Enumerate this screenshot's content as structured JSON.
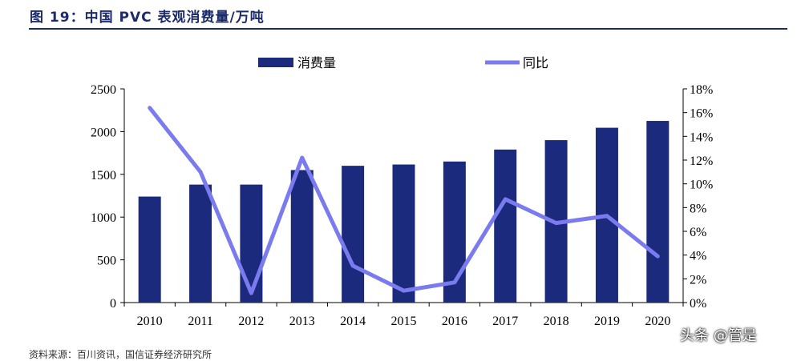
{
  "figure": {
    "title": "图 19：中国 PVC 表观消费量/万吨",
    "watermark": "头条 @管是",
    "source": "资料来源：百川资讯，国信证券经济研究所"
  },
  "chart_data": {
    "type": "bar",
    "categories": [
      "2010",
      "2011",
      "2012",
      "2013",
      "2014",
      "2015",
      "2016",
      "2017",
      "2018",
      "2019",
      "2020"
    ],
    "series": [
      {
        "name": "消费量",
        "type": "bar",
        "axis": "left",
        "values": [
          1240,
          1380,
          1380,
          1550,
          1600,
          1615,
          1650,
          1790,
          1900,
          2045,
          2125
        ]
      },
      {
        "name": "同比",
        "type": "line",
        "axis": "right",
        "values": [
          16.4,
          11.0,
          0.8,
          12.2,
          3.1,
          1.0,
          1.7,
          8.7,
          6.7,
          7.3,
          3.9
        ]
      }
    ],
    "y_left": {
      "min": 0,
      "max": 2500,
      "ticks": [
        0,
        500,
        1000,
        1500,
        2000,
        2500
      ]
    },
    "y_right": {
      "min": 0,
      "max": 18,
      "ticks": [
        "0%",
        "2%",
        "4%",
        "6%",
        "8%",
        "10%",
        "12%",
        "14%",
        "16%",
        "18%"
      ]
    },
    "legend_position": "top",
    "grid": false,
    "colors": {
      "bar": "#1c2a7d",
      "line": "#7b7bf0"
    }
  }
}
